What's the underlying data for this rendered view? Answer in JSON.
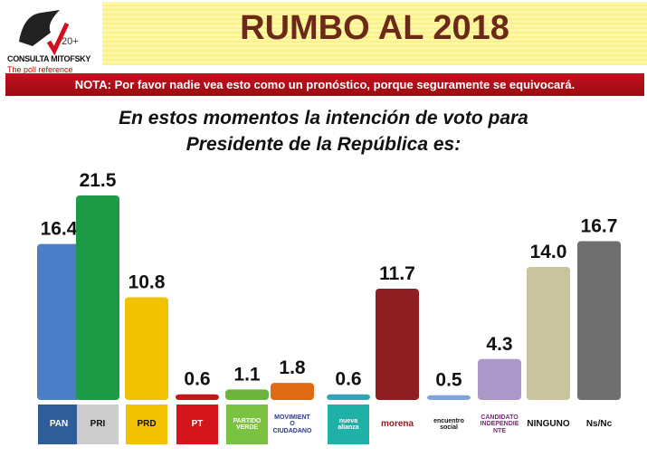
{
  "header": {
    "title": "RUMBO AL 2018",
    "logo_brand": "CONSULTA MITOFSKY",
    "logo_tagline": "The poll reference",
    "logo_years": "20+"
  },
  "note": "NOTA: Por favor nadie vea esto como un pronóstico, porque seguramente se equivocará.",
  "chart_data": {
    "type": "bar",
    "title": "En estos momentos la intención de voto para Presidente de la República es:",
    "title_lines": [
      "En estos momentos la intención de voto para",
      "Presidente de la República es:"
    ],
    "categories": [
      "PAN",
      "PRI",
      "PRD",
      "PT",
      "PARTIDO VERDE",
      "MOVIMIENTO CIUDADANO",
      "nueva alianza",
      "morena",
      "encuentro social",
      "CANDIDATO INDEPENDIENTE",
      "NINGUNO",
      "Ns/Nc"
    ],
    "values": [
      16.4,
      21.5,
      10.8,
      0.6,
      1.1,
      1.8,
      0.6,
      11.7,
      0.5,
      4.3,
      14.0,
      16.7
    ],
    "labels": [
      "16.4",
      "21.5",
      "10.8",
      "0.6",
      "1.1",
      "1.8",
      "0.6",
      "11.7",
      "0.5",
      "4.3",
      "14.0",
      "16.7"
    ],
    "colors": [
      "#4a7fc8",
      "#1d9a45",
      "#f2c100",
      "#c3161c",
      "#6cb43c",
      "#e06a14",
      "#33a3b8",
      "#8e1e22",
      "#7fa5d8",
      "#ab97c8",
      "#c9c3a0",
      "#6f6f6f"
    ],
    "logo_colors": [
      "#2f5d9a",
      "#ccc",
      "#f4c300",
      "#d4161c",
      "#7cc242",
      "#fff",
      "#1fb0a8",
      "#fff",
      "#fff",
      "#fff",
      "#fff",
      "#fff"
    ],
    "ylim": [
      0,
      23
    ],
    "grid": false,
    "legend": "none"
  }
}
